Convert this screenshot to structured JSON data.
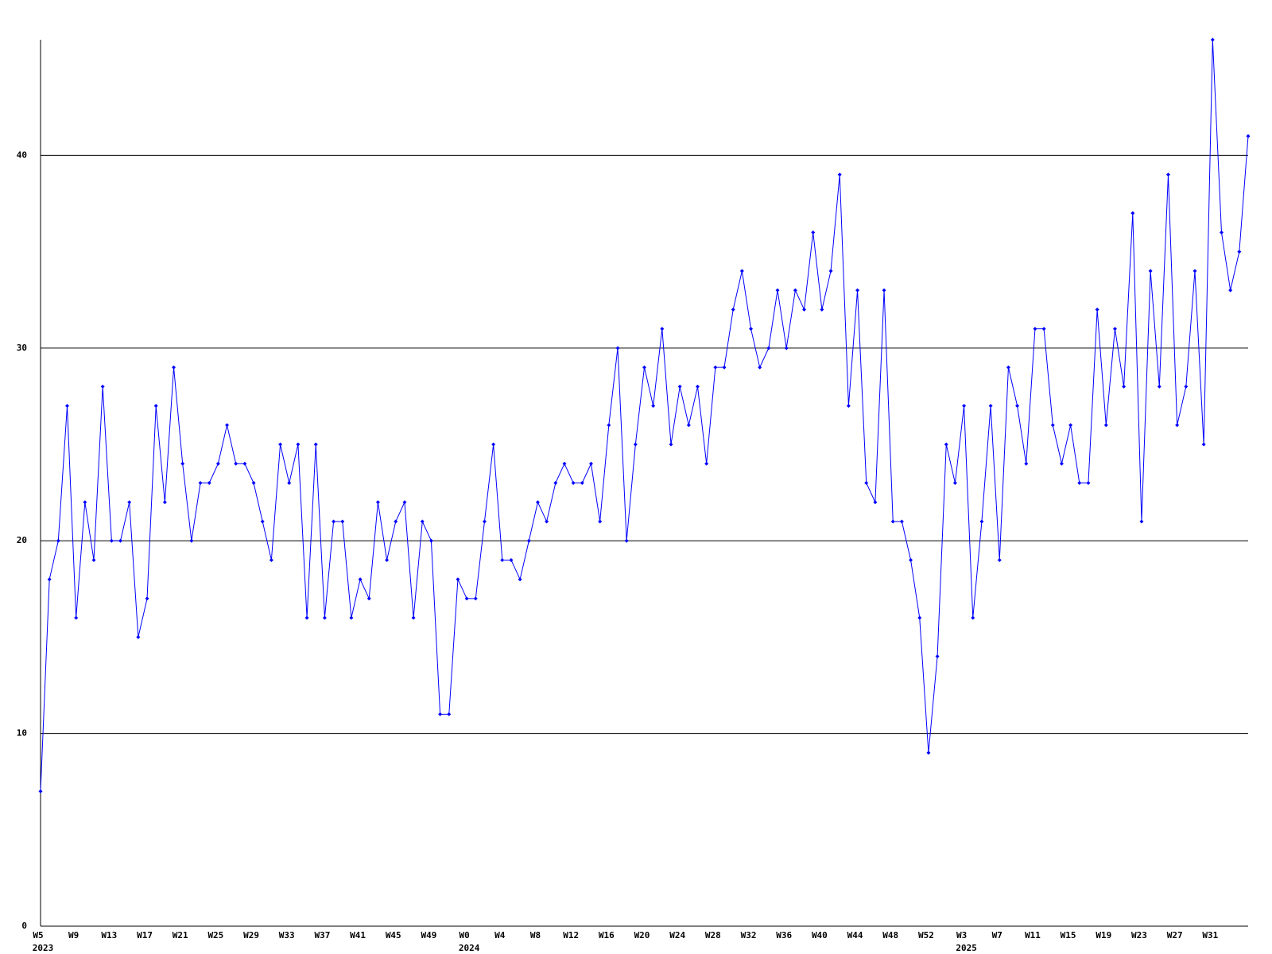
{
  "chart_data": {
    "type": "line",
    "categories": [
      "W5",
      null,
      null,
      null,
      "W9",
      null,
      null,
      null,
      "W13",
      null,
      null,
      null,
      "W17",
      null,
      null,
      null,
      "W21",
      null,
      null,
      null,
      "W25",
      null,
      null,
      null,
      "W29",
      null,
      null,
      null,
      "W33",
      null,
      null,
      null,
      "W37",
      null,
      null,
      null,
      "W41",
      null,
      null,
      null,
      "W45",
      null,
      null,
      null,
      "W49",
      null,
      null,
      null,
      "W0",
      null,
      null,
      null,
      "W4",
      null,
      null,
      null,
      "W8",
      null,
      null,
      null,
      "W12",
      null,
      null,
      null,
      "W16",
      null,
      null,
      null,
      "W20",
      null,
      null,
      null,
      "W24",
      null,
      null,
      null,
      "W28",
      null,
      null,
      null,
      "W32",
      null,
      null,
      null,
      "W36",
      null,
      null,
      null,
      "W40",
      null,
      null,
      null,
      "W44",
      null,
      null,
      null,
      "W48",
      null,
      null,
      null,
      "W52",
      null,
      null,
      null,
      "W3",
      null,
      null,
      null,
      "W7",
      null,
      null,
      null,
      "W11",
      null,
      null,
      null,
      "W15",
      null,
      null,
      null,
      "W19",
      null,
      null,
      null,
      "W23",
      null,
      null,
      null,
      "W27",
      null,
      null,
      null,
      "W31",
      null,
      null,
      null,
      null
    ],
    "year_labels": [
      "2023",
      null,
      null,
      null,
      null,
      null,
      null,
      null,
      null,
      null,
      null,
      null,
      null,
      null,
      null,
      null,
      null,
      null,
      null,
      null,
      null,
      null,
      null,
      null,
      null,
      null,
      null,
      null,
      null,
      null,
      null,
      null,
      null,
      null,
      null,
      null,
      null,
      null,
      null,
      null,
      null,
      null,
      null,
      null,
      null,
      null,
      null,
      null,
      "2024",
      null,
      null,
      null,
      null,
      null,
      null,
      null,
      null,
      null,
      null,
      null,
      null,
      null,
      null,
      null,
      null,
      null,
      null,
      null,
      null,
      null,
      null,
      null,
      null,
      null,
      null,
      null,
      null,
      null,
      null,
      null,
      null,
      null,
      null,
      null,
      null,
      null,
      null,
      null,
      null,
      null,
      null,
      null,
      null,
      null,
      null,
      null,
      null,
      null,
      null,
      null,
      null,
      null,
      null,
      null,
      "2025",
      null,
      null,
      null,
      null,
      null,
      null,
      null,
      null,
      null,
      null,
      null,
      null,
      null,
      null,
      null,
      null,
      null,
      null,
      null,
      null,
      null,
      null,
      null,
      null,
      null,
      null,
      null,
      null,
      null,
      null,
      null,
      null
    ],
    "series": [
      {
        "color": "#0000ff",
        "values": [
          7,
          18,
          20,
          27,
          16,
          22,
          19,
          28,
          20,
          20,
          22,
          15,
          17,
          27,
          22,
          29,
          24,
          20,
          23,
          23,
          24,
          26,
          24,
          24,
          23,
          21,
          19,
          25,
          23,
          25,
          16,
          25,
          16,
          21,
          21,
          16,
          18,
          17,
          22,
          19,
          21,
          22,
          16,
          21,
          20,
          11,
          11,
          18,
          17,
          17,
          21,
          25,
          19,
          19,
          18,
          20,
          22,
          21,
          23,
          24,
          23,
          23,
          24,
          21,
          26,
          30,
          20,
          25,
          29,
          27,
          31,
          25,
          28,
          26,
          28,
          24,
          29,
          29,
          32,
          34,
          31,
          29,
          30,
          33,
          30,
          33,
          32,
          36,
          32,
          34,
          39,
          27,
          33,
          23,
          22,
          33,
          21,
          21,
          19,
          16,
          9,
          14,
          25,
          23,
          27,
          16,
          21,
          27,
          19,
          29,
          27,
          24,
          31,
          31,
          26,
          24,
          26,
          23,
          23,
          32,
          26,
          31,
          28,
          37,
          21,
          34,
          28,
          39,
          26,
          28,
          34,
          25,
          46,
          36,
          33,
          35,
          41
        ]
      }
    ],
    "ylim": [
      0,
      46
    ],
    "yticks": [
      0,
      10,
      20,
      30,
      40
    ],
    "grid": true
  }
}
